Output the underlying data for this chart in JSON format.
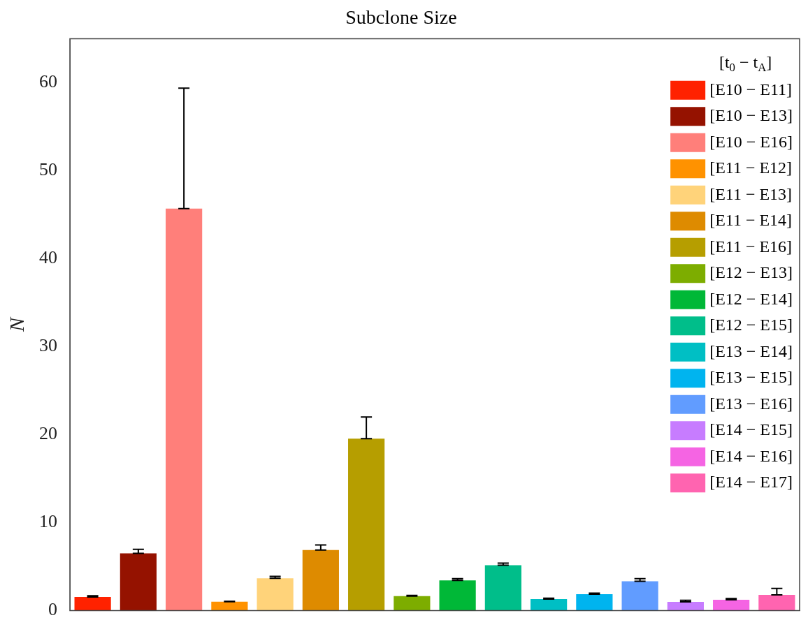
{
  "chart_data": {
    "type": "bar",
    "title": "Subclone Size",
    "ylabel": "N",
    "legend_title": "[t$_{0}$ − t$_{A}$]",
    "categories": [
      null,
      null,
      null,
      null,
      null,
      null,
      null,
      null,
      null,
      null,
      null,
      null,
      null,
      null,
      null,
      null
    ],
    "ylim": [
      0,
      65
    ],
    "yticks": [
      0,
      10,
      20,
      30,
      40,
      50,
      60
    ],
    "tick_labels": "y",
    "grid": false,
    "legend": "top right",
    "series": [
      {
        "name": "[E10 − E11]",
        "color": "#ff2200",
        "values": [
          1.55,
          null,
          null,
          null,
          null,
          null,
          null,
          null,
          null,
          null,
          null,
          null,
          null,
          null,
          null,
          null
        ],
        "errors": [
          [
            1.55,
            1.68
          ],
          null,
          null,
          null,
          null,
          null,
          null,
          null,
          null,
          null,
          null,
          null,
          null,
          null,
          null,
          null
        ]
      },
      {
        "name": "[E10 − E13]",
        "color": "#951200",
        "values": [
          null,
          6.5,
          null,
          null,
          null,
          null,
          null,
          null,
          null,
          null,
          null,
          null,
          null,
          null,
          null,
          null
        ],
        "errors": [
          null,
          [
            6.5,
            6.95
          ],
          null,
          null,
          null,
          null,
          null,
          null,
          null,
          null,
          null,
          null,
          null,
          null,
          null,
          null
        ]
      },
      {
        "name": "[E10 − E16]",
        "color": "#ff7f7a",
        "values": [
          null,
          null,
          45.7,
          null,
          null,
          null,
          null,
          null,
          null,
          null,
          null,
          null,
          null,
          null,
          null,
          null
        ],
        "errors": [
          null,
          null,
          [
            45.7,
            59.4
          ],
          null,
          null,
          null,
          null,
          null,
          null,
          null,
          null,
          null,
          null,
          null,
          null,
          null
        ]
      },
      {
        "name": "[E11 − E12]",
        "color": "#ff9200",
        "values": [
          null,
          null,
          null,
          1.0,
          null,
          null,
          null,
          null,
          null,
          null,
          null,
          null,
          null,
          null,
          null,
          null
        ],
        "errors": [
          null,
          null,
          null,
          [
            1.0,
            1.05
          ],
          null,
          null,
          null,
          null,
          null,
          null,
          null,
          null,
          null,
          null,
          null,
          null
        ]
      },
      {
        "name": "[E11 − E13]",
        "color": "#ffd37a",
        "values": [
          null,
          null,
          null,
          null,
          3.67,
          null,
          null,
          null,
          null,
          null,
          null,
          null,
          null,
          null,
          null,
          null
        ],
        "errors": [
          null,
          null,
          null,
          null,
          [
            3.67,
            3.88
          ],
          null,
          null,
          null,
          null,
          null,
          null,
          null,
          null,
          null,
          null,
          null
        ]
      },
      {
        "name": "[E11 − E14]",
        "color": "#de8b00",
        "values": [
          null,
          null,
          null,
          null,
          null,
          6.88,
          null,
          null,
          null,
          null,
          null,
          null,
          null,
          null,
          null,
          null
        ],
        "errors": [
          null,
          null,
          null,
          null,
          null,
          [
            6.88,
            7.45
          ],
          null,
          null,
          null,
          null,
          null,
          null,
          null,
          null,
          null,
          null
        ]
      },
      {
        "name": "[E11 − E16]",
        "color": "#b69e00",
        "values": [
          null,
          null,
          null,
          null,
          null,
          null,
          19.55,
          null,
          null,
          null,
          null,
          null,
          null,
          null,
          null,
          null
        ],
        "errors": [
          null,
          null,
          null,
          null,
          null,
          null,
          [
            19.55,
            22.0
          ],
          null,
          null,
          null,
          null,
          null,
          null,
          null,
          null,
          null
        ]
      },
      {
        "name": "[E12 − E13]",
        "color": "#7dad00",
        "values": [
          null,
          null,
          null,
          null,
          null,
          null,
          null,
          1.64,
          null,
          null,
          null,
          null,
          null,
          null,
          null,
          null
        ],
        "errors": [
          null,
          null,
          null,
          null,
          null,
          null,
          null,
          [
            1.64,
            1.72
          ],
          null,
          null,
          null,
          null,
          null,
          null,
          null,
          null
        ]
      },
      {
        "name": "[E12 − E14]",
        "color": "#00b837",
        "values": [
          null,
          null,
          null,
          null,
          null,
          null,
          null,
          null,
          3.42,
          null,
          null,
          null,
          null,
          null,
          null,
          null
        ],
        "errors": [
          null,
          null,
          null,
          null,
          null,
          null,
          null,
          null,
          [
            3.42,
            3.62
          ],
          null,
          null,
          null,
          null,
          null,
          null,
          null
        ]
      },
      {
        "name": "[E12 − E15]",
        "color": "#00be8a",
        "values": [
          null,
          null,
          null,
          null,
          null,
          null,
          null,
          null,
          null,
          5.16,
          null,
          null,
          null,
          null,
          null,
          null
        ],
        "errors": [
          null,
          null,
          null,
          null,
          null,
          null,
          null,
          null,
          null,
          [
            5.16,
            5.4
          ],
          null,
          null,
          null,
          null,
          null,
          null
        ]
      },
      {
        "name": "[E13 − E14]",
        "color": "#00bfc4",
        "values": [
          null,
          null,
          null,
          null,
          null,
          null,
          null,
          null,
          null,
          null,
          1.3,
          null,
          null,
          null,
          null,
          null
        ],
        "errors": [
          null,
          null,
          null,
          null,
          null,
          null,
          null,
          null,
          null,
          null,
          [
            1.3,
            1.41
          ],
          null,
          null,
          null,
          null,
          null
        ]
      },
      {
        "name": "[E13 − E15]",
        "color": "#00b4ef",
        "values": [
          null,
          null,
          null,
          null,
          null,
          null,
          null,
          null,
          null,
          null,
          null,
          1.86,
          null,
          null,
          null,
          null
        ],
        "errors": [
          null,
          null,
          null,
          null,
          null,
          null,
          null,
          null,
          null,
          null,
          null,
          [
            1.86,
            1.97
          ],
          null,
          null,
          null,
          null
        ]
      },
      {
        "name": "[E13 − E16]",
        "color": "#619cff",
        "values": [
          null,
          null,
          null,
          null,
          null,
          null,
          null,
          null,
          null,
          null,
          null,
          null,
          3.32,
          null,
          null,
          null
        ],
        "errors": [
          null,
          null,
          null,
          null,
          null,
          null,
          null,
          null,
          null,
          null,
          null,
          null,
          [
            3.32,
            3.62
          ],
          null,
          null,
          null
        ]
      },
      {
        "name": "[E14 − E15]",
        "color": "#c77cff",
        "values": [
          null,
          null,
          null,
          null,
          null,
          null,
          null,
          null,
          null,
          null,
          null,
          null,
          null,
          0.98,
          null,
          null
        ],
        "errors": [
          null,
          null,
          null,
          null,
          null,
          null,
          null,
          null,
          null,
          null,
          null,
          null,
          null,
          [
            0.98,
            1.17
          ],
          null,
          null
        ]
      },
      {
        "name": "[E14 − E16]",
        "color": "#f564e3",
        "values": [
          null,
          null,
          null,
          null,
          null,
          null,
          null,
          null,
          null,
          null,
          null,
          null,
          null,
          null,
          1.23,
          null
        ],
        "errors": [
          null,
          null,
          null,
          null,
          null,
          null,
          null,
          null,
          null,
          null,
          null,
          null,
          null,
          null,
          [
            1.23,
            1.36
          ],
          null
        ]
      },
      {
        "name": "[E14 − E17]",
        "color": "#ff64b0",
        "values": [
          null,
          null,
          null,
          null,
          null,
          null,
          null,
          null,
          null,
          null,
          null,
          null,
          null,
          null,
          null,
          1.77
        ],
        "errors": [
          null,
          null,
          null,
          null,
          null,
          null,
          null,
          null,
          null,
          null,
          null,
          null,
          null,
          null,
          null,
          [
            1.77,
            2.51
          ]
        ]
      }
    ]
  }
}
